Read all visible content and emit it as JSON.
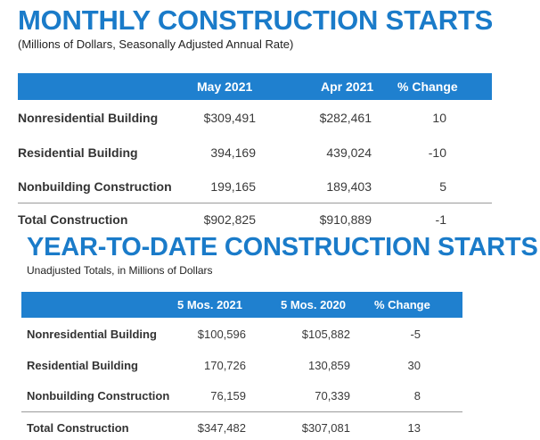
{
  "monthly": {
    "title": "MONTHLY CONSTRUCTION STARTS",
    "subtitle": "(Millions of Dollars, Seasonally Adjusted Annual Rate)",
    "headers": [
      "",
      "May 2021",
      "Apr 2021",
      "% Change"
    ],
    "rows": [
      {
        "label": "Nonresidential Building",
        "current": "$309,491",
        "previous": "$282,461",
        "change": "10"
      },
      {
        "label": "Residential Building",
        "current": "394,169",
        "previous": "439,024",
        "change": "-10"
      },
      {
        "label": "Nonbuilding Construction",
        "current": "199,165",
        "previous": "189,403",
        "change": "5"
      },
      {
        "label": "Total Construction",
        "current": "$902,825",
        "previous": "$910,889",
        "change": "-1"
      }
    ]
  },
  "ytd": {
    "title": "YEAR-TO-DATE CONSTRUCTION STARTS",
    "subtitle": "Unadjusted Totals, in Millions of Dollars",
    "headers": [
      "",
      "5 Mos. 2021",
      "5 Mos. 2020",
      "% Change"
    ],
    "rows": [
      {
        "label": "Nonresidential Building",
        "current": "$100,596",
        "previous": "$105,882",
        "change": "-5"
      },
      {
        "label": "Residential Building",
        "current": "170,726",
        "previous": "130,859",
        "change": "30"
      },
      {
        "label": "Nonbuilding Construction",
        "current": "76,159",
        "previous": "70,339",
        "change": "8"
      },
      {
        "label": "Total Construction",
        "current": "$347,482",
        "previous": "$307,081",
        "change": "13"
      }
    ]
  },
  "colors": {
    "title_blue": "#1a7bc9",
    "header_blue": "#1f80cf"
  }
}
